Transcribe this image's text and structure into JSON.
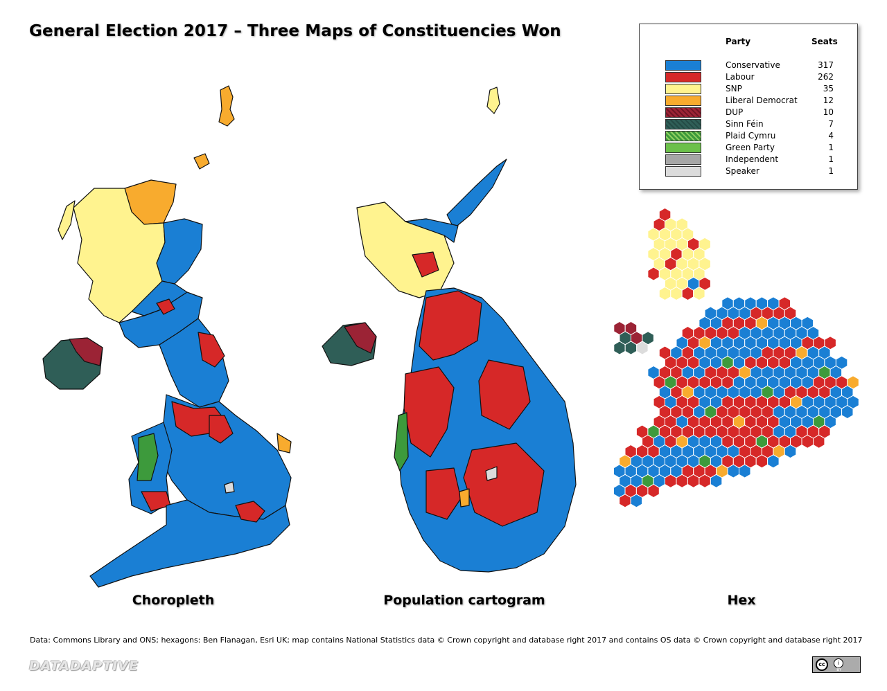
{
  "title": "General Election 2017 – Three Maps of Constituencies Won",
  "legend": {
    "party_header": "Party",
    "seats_header": "Seats",
    "rows": [
      {
        "name": "Conservative",
        "seats": "317",
        "color": "#1a7fd4"
      },
      {
        "name": "Labour",
        "seats": "262",
        "color": "#d62828"
      },
      {
        "name": "SNP",
        "seats": "35",
        "color": "#fff38f"
      },
      {
        "name": "Liberal Democrat",
        "seats": "12",
        "color": "#f8ab2e"
      },
      {
        "name": "DUP",
        "seats": "10",
        "color": "#9b2335"
      },
      {
        "name": "Sinn Féin",
        "seats": "7",
        "color": "#2f5e57"
      },
      {
        "name": "Plaid Cymru",
        "seats": "4",
        "color": "#3d9a3c"
      },
      {
        "name": "Green Party",
        "seats": "1",
        "color": "#6cc04a"
      },
      {
        "name": "Independent",
        "seats": "1",
        "color": "#a6a6a6"
      },
      {
        "name": "Speaker",
        "seats": "1",
        "color": "#dcdcdc"
      }
    ]
  },
  "maps": {
    "choropleth_caption": "Choropleth",
    "cartogram_caption": "Population cartogram",
    "hex_caption": "Hex"
  },
  "footer": {
    "source_note": "Data: Commons Library and ONS; hexagons: Ben Flanagan, Esri UK; map contains National Statistics data © Crown copyright and database right 2017 and contains OS data © Crown copyright and database right 2017",
    "brand": "DATADAPTIVE",
    "license_cc": "cc",
    "license_by": "i",
    "license_by_text": "BY"
  }
}
